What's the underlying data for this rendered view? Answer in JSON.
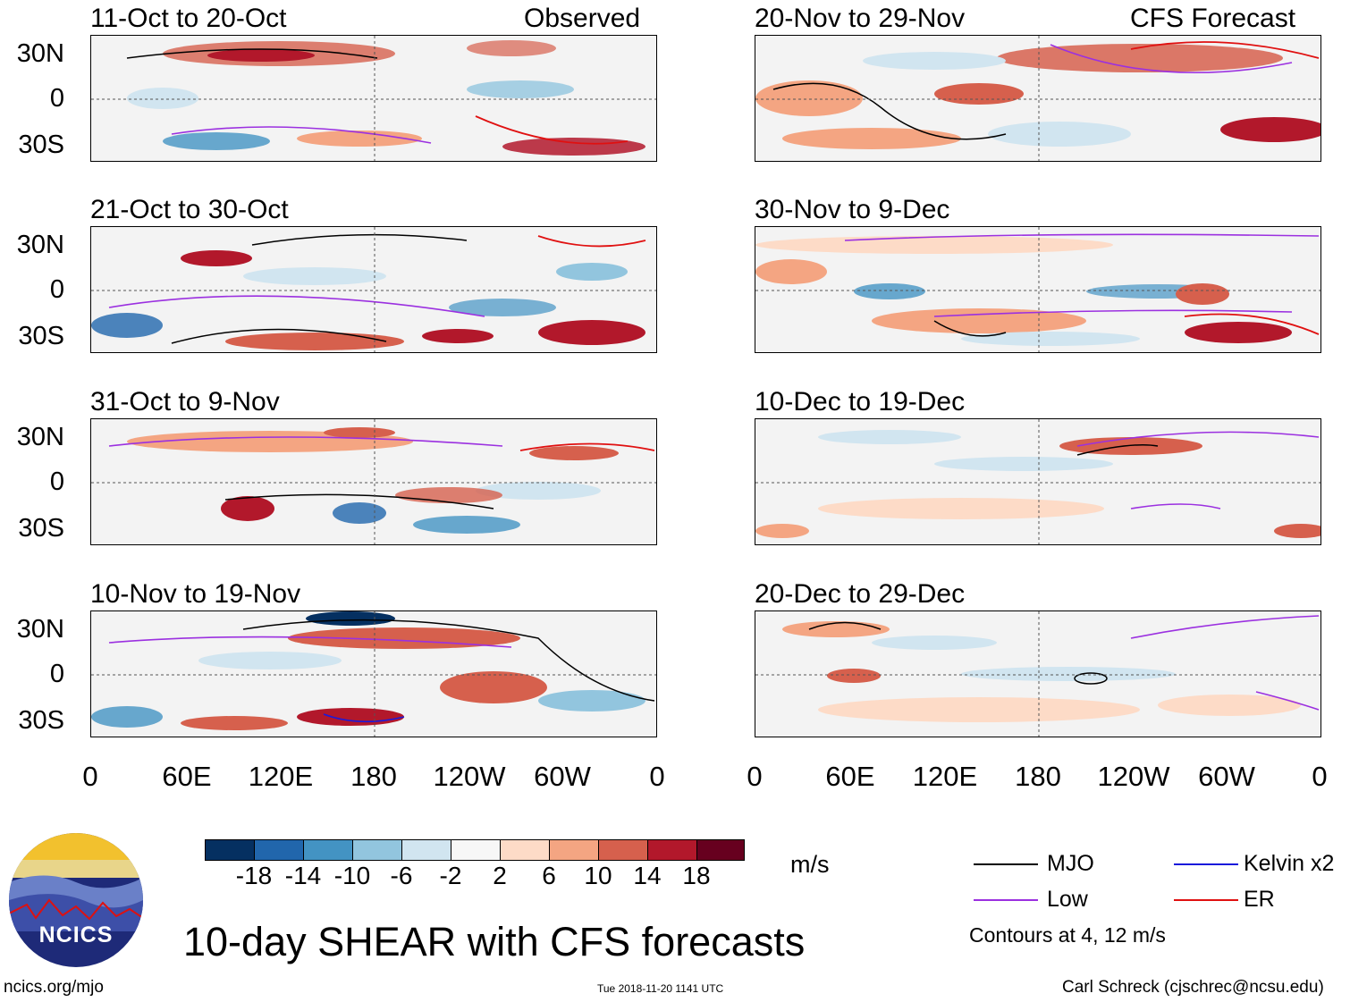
{
  "columns": {
    "left_heading": "Observed",
    "right_heading": "CFS Forecast"
  },
  "panels_left": [
    {
      "title": "11-Oct to 20-Oct"
    },
    {
      "title": "21-Oct to 30-Oct"
    },
    {
      "title": "31-Oct to 9-Nov"
    },
    {
      "title": "10-Nov to 19-Nov"
    }
  ],
  "panels_right": [
    {
      "title": "20-Nov to 29-Nov"
    },
    {
      "title": "30-Nov to 9-Dec"
    },
    {
      "title": "10-Dec to 19-Dec"
    },
    {
      "title": "20-Dec to 29-Dec"
    }
  ],
  "lat_labels": [
    "30N",
    "0",
    "30S"
  ],
  "lon_labels": [
    "0",
    "60E",
    "120E",
    "180",
    "120W",
    "60W",
    "0"
  ],
  "colorbar": {
    "units": "m/s",
    "tick_labels": [
      "-18",
      "-14",
      "-10",
      "-6",
      "-2",
      "2",
      "6",
      "10",
      "14",
      "18"
    ],
    "colors": [
      "#053061",
      "#2166ac",
      "#4393c3",
      "#92c5de",
      "#d1e5f0",
      "#f7f7f7",
      "#fddbc7",
      "#f4a582",
      "#d6604d",
      "#b2182b",
      "#67001f"
    ]
  },
  "legend": {
    "items": [
      {
        "label": "MJO",
        "color": "#000000"
      },
      {
        "label": "Kelvin x2",
        "color": "#1a1adb"
      },
      {
        "label": "Low",
        "color": "#9b30e0"
      },
      {
        "label": "ER",
        "color": "#e01010"
      }
    ],
    "note": "Contours at 4, 12 m/s"
  },
  "footer": {
    "main_title": "10-day SHEAR with CFS forecasts",
    "site": "ncics.org/mjo",
    "timestamp": "Tue 2018-11-20 1141 UTC",
    "author": "Carl Schreck (cjschrec@ncsu.edu)",
    "logo_text": "NCICS"
  }
}
